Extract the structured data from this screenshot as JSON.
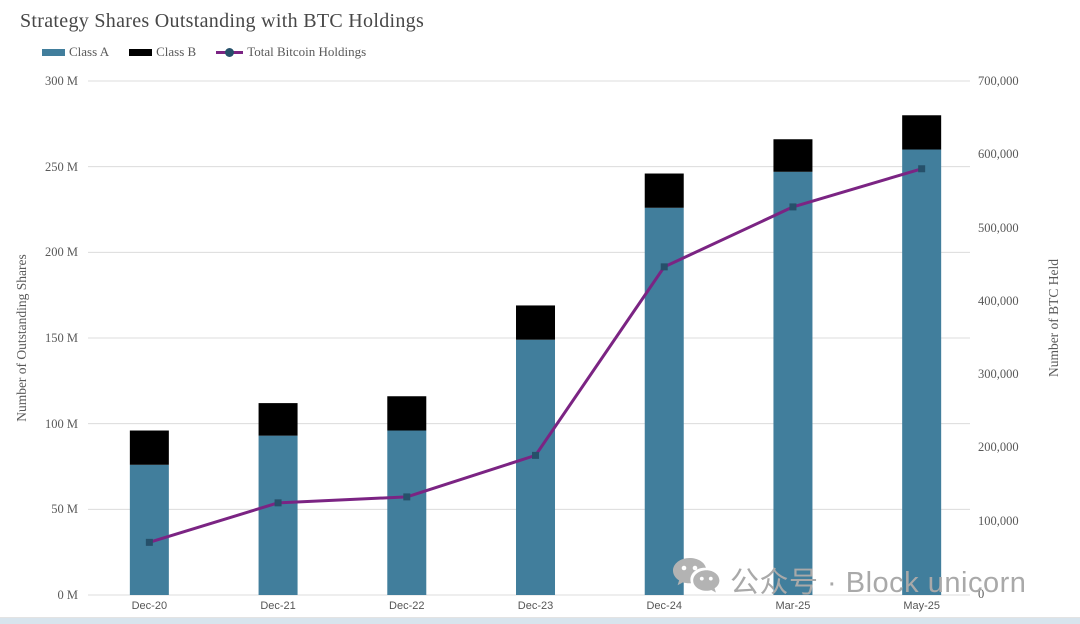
{
  "page_title": "Strategy Shares Outstanding with BTC Holdings",
  "chart_data": {
    "type": "combo-stacked-bar-line",
    "title": "Strategy Shares Outstanding with BTC Holdings",
    "categories": [
      "Dec-20",
      "Dec-21",
      "Dec-22",
      "Dec-23",
      "Dec-24",
      "Mar-25",
      "May-25"
    ],
    "series": [
      {
        "name": "Class A",
        "type": "bar",
        "stack": "shares",
        "axis": "left",
        "unit": "M shares",
        "color": "#417e9c",
        "values": [
          76,
          93,
          96,
          149,
          226,
          247,
          260
        ]
      },
      {
        "name": "Class B",
        "type": "bar",
        "stack": "shares",
        "axis": "left",
        "unit": "M shares",
        "color": "#000000",
        "values": [
          20,
          19,
          20,
          20,
          20,
          19,
          20
        ]
      },
      {
        "name": "Total Bitcoin Holdings",
        "type": "line",
        "axis": "right",
        "unit": "BTC",
        "color": "#7b2483",
        "marker_color": "#26506a",
        "values": [
          70470,
          124391,
          132500,
          189150,
          446400,
          528185,
          580250
        ]
      }
    ],
    "left_axis": {
      "title": "Number of Outstanding Shares",
      "min": 0,
      "max": 300,
      "tick_step": 50,
      "tick_labels": [
        "0 M",
        "50 M",
        "100 M",
        "150 M",
        "200 M",
        "250 M",
        "300 M"
      ]
    },
    "right_axis": {
      "title": "Number of BTC Held",
      "min": 0,
      "max": 700000,
      "tick_step": 100000,
      "tick_labels": [
        "0",
        "100,000",
        "200,000",
        "300,000",
        "400,000",
        "500,000",
        "600,000",
        "700,000"
      ]
    },
    "grid": true,
    "legend_position": "top-left"
  },
  "watermark": {
    "icon": "wechat-icon",
    "text": "公众号 · Block unicorn"
  },
  "colors": {
    "background": "#ffffff",
    "grid": "#dcdcdc",
    "axis_text": "#595959",
    "title_text": "#474747",
    "bottom_strip": "#d8e4ed"
  }
}
